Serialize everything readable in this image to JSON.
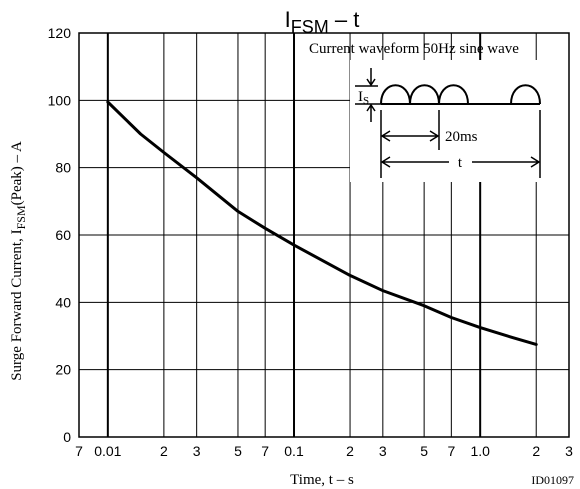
{
  "chart_data": {
    "type": "line",
    "title": {
      "main": "I",
      "sub": "FSM",
      "suffix": " – t"
    },
    "xlabel": "Time, t  –  s",
    "ylabel": {
      "prefix": "Surge Forward Current, I",
      "sub": "FSM",
      "suffix": "(Peak)  –  A"
    },
    "x_scale": "log",
    "xlim": [
      0.007,
      3.0
    ],
    "ylim": [
      0,
      120
    ],
    "grid": true,
    "y_ticks": [
      0,
      20,
      40,
      60,
      80,
      100,
      120
    ],
    "x_ticks": [
      {
        "value": 0.007,
        "label": "7"
      },
      {
        "value": 0.01,
        "label": "0.01"
      },
      {
        "value": 0.02,
        "label": "2"
      },
      {
        "value": 0.03,
        "label": "3"
      },
      {
        "value": 0.05,
        "label": "5"
      },
      {
        "value": 0.07,
        "label": "7"
      },
      {
        "value": 0.1,
        "label": "0.1"
      },
      {
        "value": 0.2,
        "label": "2"
      },
      {
        "value": 0.3,
        "label": "3"
      },
      {
        "value": 0.5,
        "label": "5"
      },
      {
        "value": 0.7,
        "label": "7"
      },
      {
        "value": 1.0,
        "label": "1.0"
      },
      {
        "value": 2.0,
        "label": "2"
      },
      {
        "value": 3.0,
        "label": "3"
      }
    ],
    "x_gridlines": [
      0.01,
      0.02,
      0.03,
      0.05,
      0.07,
      0.1,
      0.2,
      0.3,
      0.5,
      0.7,
      1.0,
      2.0
    ],
    "x_heavy_gridlines": [
      0.01,
      0.1,
      1.0
    ],
    "series": [
      {
        "x": [
          0.01,
          0.015,
          0.02,
          0.03,
          0.05,
          0.07,
          0.1,
          0.2,
          0.3,
          0.5,
          0.7,
          1.0,
          1.5,
          2.0
        ],
        "y": [
          99.5,
          90,
          84.5,
          77,
          67,
          62,
          57,
          48,
          43.5,
          39,
          35.5,
          32.5,
          29.5,
          27.5
        ]
      }
    ],
    "annotations": {
      "waveform_title": "Current waveform 50Hz sine wave",
      "is_main": "I",
      "is_sub": "S",
      "period_label": "20ms",
      "t_label": "t"
    },
    "doc_id": "ID01097"
  }
}
